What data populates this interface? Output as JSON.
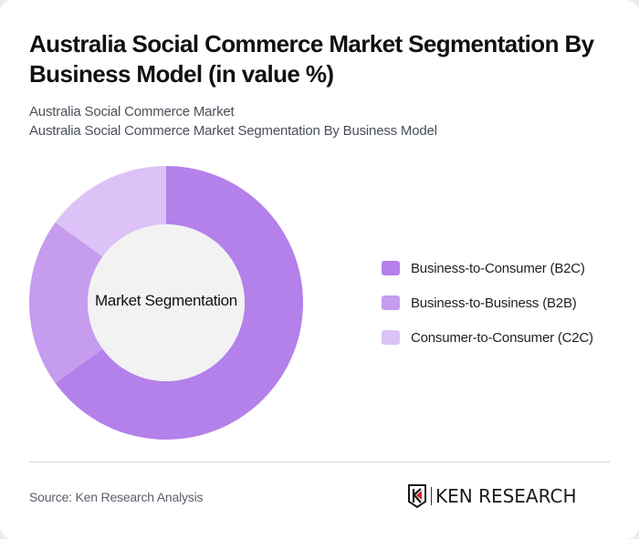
{
  "header": {
    "title": "Australia Social Commerce Market Segmentation By Business Model (in value %)",
    "subtitle_1": "Australia Social Commerce Market",
    "subtitle_2": "Australia Social Commerce Market Segmentation By Business Model"
  },
  "chart": {
    "center_label": "Market Segmentation",
    "center_fill": "#f2f2f2"
  },
  "legend": {
    "items": [
      {
        "label": "Business-to-Consumer (B2C)",
        "color": "#b480ea"
      },
      {
        "label": "Business-to-Business (B2B)",
        "color": "#c59cee"
      },
      {
        "label": "Consumer-to-Consumer (C2C)",
        "color": "#dcc2f6"
      }
    ]
  },
  "footer": {
    "source": "Source: Ken Research Analysis",
    "logo_text": "KEN RESEARCH",
    "logo_icon": "ken-research-k-shield-icon"
  },
  "chart_data": {
    "type": "pie",
    "variant": "donut",
    "title": "Australia Social Commerce Market Segmentation By Business Model (in value %)",
    "subtitle": "Australia Social Commerce Market Segmentation By Business Model",
    "center_label": "Market Segmentation",
    "categories": [
      "Business-to-Consumer (B2C)",
      "Business-to-Business (B2B)",
      "Consumer-to-Consumer (C2C)"
    ],
    "values": [
      65,
      20,
      15
    ],
    "colors": [
      "#b480ea",
      "#c59cee",
      "#dcc2f6"
    ],
    "unit": "%",
    "start_angle": "12 o'clock, clockwise",
    "legend_position": "right",
    "data_labels": false
  }
}
